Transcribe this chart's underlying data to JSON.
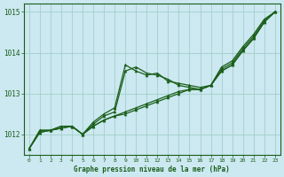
{
  "title": "Graphe pression niveau de la mer (hPa)",
  "bg_color": "#cce8f0",
  "grid_color": "#99ccc4",
  "line_color": "#1a5e1a",
  "xlim": [
    -0.5,
    23.5
  ],
  "ylim": [
    1011.5,
    1015.2
  ],
  "yticks": [
    1012,
    1013,
    1014,
    1015
  ],
  "xticks": [
    0,
    1,
    2,
    3,
    4,
    5,
    6,
    7,
    8,
    9,
    10,
    11,
    12,
    13,
    14,
    15,
    16,
    17,
    18,
    19,
    20,
    21,
    22,
    23
  ],
  "series1_x": [
    0,
    1,
    2,
    3,
    4,
    5,
    6,
    7,
    8,
    9,
    10,
    11,
    12,
    13,
    14,
    15,
    16,
    17,
    18,
    19,
    20,
    21,
    22,
    23
  ],
  "series1_y": [
    1011.65,
    1012.1,
    1012.1,
    1012.2,
    1012.2,
    1012.0,
    1012.3,
    1012.5,
    1012.65,
    1013.7,
    1013.55,
    1013.45,
    1013.5,
    1013.3,
    1013.25,
    1013.2,
    1013.15,
    1013.2,
    1013.65,
    1013.8,
    1014.15,
    1014.45,
    1014.82,
    1015.0
  ],
  "series2_x": [
    0,
    1,
    2,
    3,
    4,
    5,
    6,
    7,
    8,
    9,
    10,
    11,
    12,
    13,
    14,
    15,
    16,
    17,
    18,
    19,
    20,
    21,
    22,
    23
  ],
  "series2_y": [
    1011.65,
    1012.1,
    1012.1,
    1012.2,
    1012.2,
    1012.0,
    1012.25,
    1012.45,
    1012.55,
    1013.55,
    1013.65,
    1013.5,
    1013.45,
    1013.35,
    1013.2,
    1013.15,
    1013.1,
    1013.2,
    1013.6,
    1013.75,
    1014.1,
    1014.4,
    1014.78,
    1015.0
  ],
  "series3_x": [
    0,
    1,
    2,
    3,
    4,
    5,
    6,
    7,
    8,
    9,
    10,
    11,
    12,
    13,
    14,
    15,
    16,
    17,
    18,
    19,
    20,
    21,
    22,
    23
  ],
  "series3_y": [
    1011.65,
    1012.05,
    1012.1,
    1012.15,
    1012.2,
    1012.0,
    1012.2,
    1012.35,
    1012.45,
    1012.55,
    1012.65,
    1012.75,
    1012.85,
    1012.95,
    1013.05,
    1013.1,
    1013.1,
    1013.2,
    1013.55,
    1013.7,
    1014.05,
    1014.35,
    1014.75,
    1015.0
  ],
  "series4_x": [
    0,
    1,
    2,
    3,
    4,
    5,
    6,
    7,
    8,
    9,
    10,
    11,
    12,
    13,
    14,
    15,
    16,
    17,
    18,
    19,
    20,
    21,
    22,
    23
  ],
  "series4_y": [
    1011.65,
    1012.05,
    1012.1,
    1012.15,
    1012.2,
    1012.0,
    1012.2,
    1012.35,
    1012.45,
    1012.5,
    1012.6,
    1012.7,
    1012.8,
    1012.9,
    1013.0,
    1013.1,
    1013.1,
    1013.2,
    1013.55,
    1013.7,
    1014.05,
    1014.35,
    1014.75,
    1015.0
  ]
}
